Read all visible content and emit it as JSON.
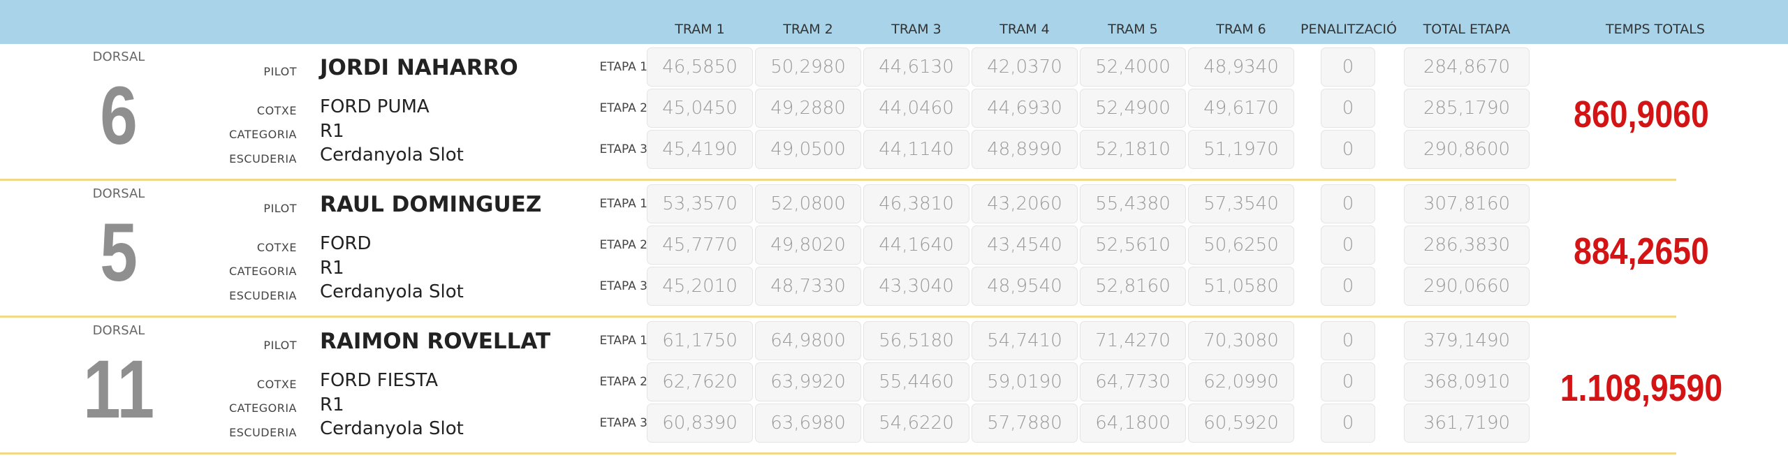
{
  "header": {
    "columns": [
      "TRAM 1",
      "TRAM 2",
      "TRAM 3",
      "TRAM 4",
      "TRAM 5",
      "TRAM 6",
      "PENALITZACIÓ",
      "TOTAL ETAPA",
      "TEMPS TOTALS"
    ]
  },
  "labels": {
    "dorsal": "DORSAL",
    "pilot": "PILOT",
    "cotxe": "COTXE",
    "categoria": "CATEGORIA",
    "escuderia": "ESCUDERIA"
  },
  "entries": [
    {
      "dorsal": "6",
      "pilot": "JORDI NAHARRO",
      "cotxe": "FORD PUMA",
      "categoria": "R1",
      "escuderia": "Cerdanyola Slot",
      "total": "860,9060",
      "etapes": [
        {
          "label": "ETAPA 1",
          "trams": [
            "46,5850",
            "50,2980",
            "44,6130",
            "42,0370",
            "52,4000",
            "48,9340"
          ],
          "penalitzacio": "0",
          "total": "284,8670"
        },
        {
          "label": "ETAPA 2",
          "trams": [
            "45,0450",
            "49,2880",
            "44,0460",
            "44,6930",
            "52,4900",
            "49,6170"
          ],
          "penalitzacio": "0",
          "total": "285,1790"
        },
        {
          "label": "ETAPA 3",
          "trams": [
            "45,4190",
            "49,0500",
            "44,1140",
            "48,8990",
            "52,1810",
            "51,1970"
          ],
          "penalitzacio": "0",
          "total": "290,8600"
        }
      ]
    },
    {
      "dorsal": "5",
      "pilot": "RAUL DOMINGUEZ",
      "cotxe": "FORD",
      "categoria": "R1",
      "escuderia": "Cerdanyola Slot",
      "total": "884,2650",
      "etapes": [
        {
          "label": "ETAPA 1",
          "trams": [
            "53,3570",
            "52,0800",
            "46,3810",
            "43,2060",
            "55,4380",
            "57,3540"
          ],
          "penalitzacio": "0",
          "total": "307,8160"
        },
        {
          "label": "ETAPA 2",
          "trams": [
            "45,7770",
            "49,8020",
            "44,1640",
            "43,4540",
            "52,5610",
            "50,6250"
          ],
          "penalitzacio": "0",
          "total": "286,3830"
        },
        {
          "label": "ETAPA 3",
          "trams": [
            "45,2010",
            "48,7330",
            "43,3040",
            "48,9540",
            "52,8160",
            "51,0580"
          ],
          "penalitzacio": "0",
          "total": "290,0660"
        }
      ]
    },
    {
      "dorsal": "11",
      "pilot": "RAIMON ROVELLAT",
      "cotxe": "FORD FIESTA",
      "categoria": "R1",
      "escuderia": "Cerdanyola Slot",
      "total": "1.108,9590",
      "etapes": [
        {
          "label": "ETAPA 1",
          "trams": [
            "61,1750",
            "64,9800",
            "56,5180",
            "54,7410",
            "71,4270",
            "70,3080"
          ],
          "penalitzacio": "0",
          "total": "379,1490"
        },
        {
          "label": "ETAPA 2",
          "trams": [
            "62,7620",
            "63,9920",
            "55,4460",
            "59,0190",
            "64,7730",
            "62,0990"
          ],
          "penalitzacio": "0",
          "total": "368,0910"
        },
        {
          "label": "ETAPA 3",
          "trams": [
            "60,8390",
            "63,6980",
            "54,6220",
            "57,7880",
            "64,1800",
            "60,5920"
          ],
          "penalitzacio": "0",
          "total": "361,7190"
        }
      ]
    }
  ]
}
